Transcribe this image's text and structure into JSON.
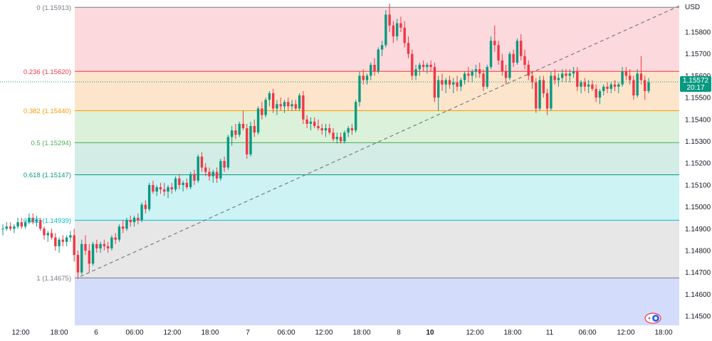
{
  "currency_label": "USD",
  "last_price": {
    "value": "1.15572",
    "countdown": "20:17"
  },
  "colors": {
    "up": "#089981",
    "down": "#f23645",
    "trendline": "#787b86",
    "last_price_bg": "#089981"
  },
  "chart_data": {
    "type": "candlestick",
    "instrument_currency": "USD",
    "ylim": [
      1.1445,
      1.1597
    ],
    "y_ticks": [
      "1.15800",
      "1.15700",
      "1.15600",
      "1.15500",
      "1.15400",
      "1.15300",
      "1.15200",
      "1.15100",
      "1.15000",
      "1.14900",
      "1.14800",
      "1.14700",
      "1.14600",
      "1.14500"
    ],
    "x_ticks": [
      {
        "label": "12:00",
        "bold": false
      },
      {
        "label": "18:00",
        "bold": false
      },
      {
        "label": "6",
        "bold": false
      },
      {
        "label": "06:00",
        "bold": false
      },
      {
        "label": "12:00",
        "bold": false
      },
      {
        "label": "18:00",
        "bold": false
      },
      {
        "label": "7",
        "bold": false
      },
      {
        "label": "06:00",
        "bold": false
      },
      {
        "label": "12:00",
        "bold": false
      },
      {
        "label": "18:00",
        "bold": false
      },
      {
        "label": "8",
        "bold": false
      },
      {
        "label": "10",
        "bold": true
      },
      {
        "label": "12:00",
        "bold": false
      },
      {
        "label": "18:00",
        "bold": false
      },
      {
        "label": "11",
        "bold": false
      },
      {
        "label": "06:00",
        "bold": false
      },
      {
        "label": "12:00",
        "bold": false
      },
      {
        "label": "18:00",
        "bold": false
      }
    ],
    "fib_levels": [
      {
        "label": "0 (1.15913)",
        "price": 1.15913,
        "color": "#787b86",
        "text_color": "#787b86",
        "fill": "#fcd9dc"
      },
      {
        "label": "0.236 (1.15620)",
        "price": 1.1562,
        "color": "#f23645",
        "text_color": "#f23645",
        "fill": "#fde5cc"
      },
      {
        "label": "0.382 (1.15440)",
        "price": 1.1544,
        "color": "#ff9800",
        "text_color": "#ff9800",
        "fill": "#dbf1d9"
      },
      {
        "label": "0.5 (1.15294)",
        "price": 1.15294,
        "color": "#4caf50",
        "text_color": "#4caf50",
        "fill": "#d3ece6"
      },
      {
        "label": "0.618 (1.15147)",
        "price": 1.15147,
        "color": "#089981",
        "text_color": "#089981",
        "fill": "#cdf3f4"
      },
      {
        "label": "0.786 (1.14939)",
        "price": 1.14939,
        "color": "#00bcd4",
        "text_color": "#00bcd4",
        "fill": "#e7e7e7"
      },
      {
        "label": "1 (1.14675)",
        "price": 1.14675,
        "color": "#787b86",
        "text_color": "#787b86",
        "fill": "#d4dcfb"
      }
    ],
    "candles": [
      [
        1.149,
        1.1492,
        1.1487,
        1.149
      ],
      [
        1.149,
        1.1493,
        1.1489,
        1.1491
      ],
      [
        1.1491,
        1.1493,
        1.1489,
        1.149
      ],
      [
        1.149,
        1.1492,
        1.1488,
        1.1491
      ],
      [
        1.1491,
        1.1495,
        1.149,
        1.1493
      ],
      [
        1.1493,
        1.1495,
        1.149,
        1.1491
      ],
      [
        1.1491,
        1.1494,
        1.149,
        1.1493
      ],
      [
        1.1493,
        1.1497,
        1.1492,
        1.1495
      ],
      [
        1.1495,
        1.1497,
        1.1492,
        1.1493
      ],
      [
        1.1493,
        1.1496,
        1.1491,
        1.1494
      ],
      [
        1.1494,
        1.1495,
        1.1489,
        1.149
      ],
      [
        1.149,
        1.1491,
        1.1485,
        1.1487
      ],
      [
        1.1487,
        1.1489,
        1.1484,
        1.1488
      ],
      [
        1.1488,
        1.149,
        1.1485,
        1.1486
      ],
      [
        1.1486,
        1.1488,
        1.148,
        1.1482
      ],
      [
        1.1482,
        1.1486,
        1.1479,
        1.1485
      ],
      [
        1.1485,
        1.1487,
        1.1482,
        1.1484
      ],
      [
        1.1484,
        1.1487,
        1.1482,
        1.1486
      ],
      [
        1.1486,
        1.1489,
        1.1484,
        1.1487
      ],
      [
        1.1487,
        1.149,
        1.1475,
        1.1478
      ],
      [
        1.1478,
        1.148,
        1.1467,
        1.147
      ],
      [
        1.147,
        1.1485,
        1.1469,
        1.1483
      ],
      [
        1.1483,
        1.1487,
        1.1478,
        1.148
      ],
      [
        1.148,
        1.1483,
        1.147,
        1.1474
      ],
      [
        1.1474,
        1.1484,
        1.1473,
        1.1483
      ],
      [
        1.1483,
        1.1485,
        1.1479,
        1.1481
      ],
      [
        1.1481,
        1.1484,
        1.1479,
        1.1483
      ],
      [
        1.1483,
        1.1485,
        1.148,
        1.1482
      ],
      [
        1.1482,
        1.1484,
        1.1479,
        1.1481
      ],
      [
        1.1481,
        1.1487,
        1.148,
        1.1486
      ],
      [
        1.1486,
        1.1488,
        1.1483,
        1.1485
      ],
      [
        1.1485,
        1.1492,
        1.1484,
        1.1491
      ],
      [
        1.1491,
        1.1494,
        1.1488,
        1.149
      ],
      [
        1.149,
        1.1495,
        1.1489,
        1.1494
      ],
      [
        1.1494,
        1.1496,
        1.1491,
        1.1493
      ],
      [
        1.1493,
        1.1496,
        1.1491,
        1.1495
      ],
      [
        1.1495,
        1.1497,
        1.1492,
        1.1494
      ],
      [
        1.1494,
        1.1502,
        1.1493,
        1.1501
      ],
      [
        1.1501,
        1.1503,
        1.1497,
        1.1499
      ],
      [
        1.1499,
        1.1511,
        1.1498,
        1.151
      ],
      [
        1.151,
        1.1512,
        1.1506,
        1.1507
      ],
      [
        1.1507,
        1.151,
        1.1505,
        1.1509
      ],
      [
        1.1509,
        1.1511,
        1.1506,
        1.1508
      ],
      [
        1.1508,
        1.1511,
        1.1505,
        1.1507
      ],
      [
        1.1507,
        1.151,
        1.1504,
        1.1509
      ],
      [
        1.1509,
        1.1511,
        1.1506,
        1.1508
      ],
      [
        1.1508,
        1.1514,
        1.1507,
        1.1513
      ],
      [
        1.1513,
        1.1515,
        1.1508,
        1.151
      ],
      [
        1.151,
        1.1512,
        1.1507,
        1.1511
      ],
      [
        1.1511,
        1.1513,
        1.1508,
        1.1509
      ],
      [
        1.1509,
        1.1516,
        1.1508,
        1.1515
      ],
      [
        1.1515,
        1.1517,
        1.151,
        1.1512
      ],
      [
        1.1512,
        1.1524,
        1.1511,
        1.1523
      ],
      [
        1.1523,
        1.1525,
        1.1516,
        1.1518
      ],
      [
        1.1518,
        1.152,
        1.1514,
        1.1516
      ],
      [
        1.1516,
        1.1518,
        1.1512,
        1.1514
      ],
      [
        1.1514,
        1.1517,
        1.1511,
        1.1516
      ],
      [
        1.1516,
        1.1518,
        1.1511,
        1.1513
      ],
      [
        1.1513,
        1.1522,
        1.1512,
        1.1521
      ],
      [
        1.1521,
        1.1523,
        1.1516,
        1.1518
      ],
      [
        1.1518,
        1.1533,
        1.1517,
        1.1532
      ],
      [
        1.1532,
        1.1537,
        1.1528,
        1.1535
      ],
      [
        1.1535,
        1.1538,
        1.1531,
        1.1533
      ],
      [
        1.1533,
        1.1539,
        1.1532,
        1.1538
      ],
      [
        1.1538,
        1.1544,
        1.1535,
        1.1536
      ],
      [
        1.1536,
        1.1538,
        1.1522,
        1.1524
      ],
      [
        1.1524,
        1.1539,
        1.1523,
        1.1537
      ],
      [
        1.1537,
        1.154,
        1.1532,
        1.1534
      ],
      [
        1.1534,
        1.1546,
        1.1533,
        1.1545
      ],
      [
        1.1545,
        1.1548,
        1.154,
        1.1542
      ],
      [
        1.1542,
        1.155,
        1.1541,
        1.1549
      ],
      [
        1.1549,
        1.1553,
        1.1546,
        1.1552
      ],
      [
        1.1552,
        1.1554,
        1.1543,
        1.1545
      ],
      [
        1.1545,
        1.1549,
        1.1542,
        1.1547
      ],
      [
        1.1547,
        1.155,
        1.1544,
        1.1546
      ],
      [
        1.1546,
        1.1549,
        1.1543,
        1.1548
      ],
      [
        1.1548,
        1.155,
        1.1544,
        1.1546
      ],
      [
        1.1546,
        1.1549,
        1.1544,
        1.1547
      ],
      [
        1.1547,
        1.1549,
        1.1544,
        1.1545
      ],
      [
        1.1545,
        1.1552,
        1.1544,
        1.1551
      ],
      [
        1.1551,
        1.1553,
        1.1538,
        1.154
      ],
      [
        1.154,
        1.1542,
        1.1536,
        1.1538
      ],
      [
        1.1538,
        1.1541,
        1.1535,
        1.1539
      ],
      [
        1.1539,
        1.1541,
        1.1536,
        1.1537
      ],
      [
        1.1537,
        1.154,
        1.1535,
        1.1536
      ],
      [
        1.1536,
        1.1538,
        1.1533,
        1.1535
      ],
      [
        1.1535,
        1.1538,
        1.1532,
        1.1536
      ],
      [
        1.1536,
        1.1538,
        1.1533,
        1.1534
      ],
      [
        1.1534,
        1.1536,
        1.153,
        1.1531
      ],
      [
        1.1531,
        1.1534,
        1.1529,
        1.1532
      ],
      [
        1.1532,
        1.1534,
        1.1529,
        1.153
      ],
      [
        1.153,
        1.1535,
        1.1529,
        1.1534
      ],
      [
        1.1534,
        1.1537,
        1.1532,
        1.1536
      ],
      [
        1.1536,
        1.1538,
        1.1533,
        1.1535
      ],
      [
        1.1535,
        1.1549,
        1.1534,
        1.1548
      ],
      [
        1.1548,
        1.1562,
        1.1546,
        1.156
      ],
      [
        1.156,
        1.1563,
        1.1556,
        1.1558
      ],
      [
        1.1558,
        1.1561,
        1.1556,
        1.156
      ],
      [
        1.156,
        1.1566,
        1.1558,
        1.1565
      ],
      [
        1.1565,
        1.1568,
        1.156,
        1.1562
      ],
      [
        1.1562,
        1.1573,
        1.1561,
        1.1572
      ],
      [
        1.1572,
        1.1576,
        1.1569,
        1.1574
      ],
      [
        1.1574,
        1.159,
        1.1573,
        1.1588
      ],
      [
        1.1588,
        1.1593,
        1.158,
        1.1583
      ],
      [
        1.1583,
        1.1585,
        1.1575,
        1.1578
      ],
      [
        1.1578,
        1.1586,
        1.1576,
        1.1584
      ],
      [
        1.1584,
        1.1587,
        1.158,
        1.1582
      ],
      [
        1.1582,
        1.1585,
        1.1573,
        1.1575
      ],
      [
        1.1575,
        1.1578,
        1.1568,
        1.157
      ],
      [
        1.157,
        1.1572,
        1.1558,
        1.156
      ],
      [
        1.156,
        1.1565,
        1.1558,
        1.1563
      ],
      [
        1.1563,
        1.1566,
        1.156,
        1.1565
      ],
      [
        1.1565,
        1.1567,
        1.1562,
        1.1564
      ],
      [
        1.1564,
        1.1566,
        1.1561,
        1.1565
      ],
      [
        1.1565,
        1.1567,
        1.1562,
        1.1564
      ],
      [
        1.1564,
        1.1566,
        1.1548,
        1.155
      ],
      [
        1.155,
        1.156,
        1.1544,
        1.1558
      ],
      [
        1.1558,
        1.1561,
        1.1553,
        1.1556
      ],
      [
        1.1556,
        1.1559,
        1.1552,
        1.1558
      ],
      [
        1.1558,
        1.156,
        1.1554,
        1.1556
      ],
      [
        1.1556,
        1.1559,
        1.1552,
        1.1557
      ],
      [
        1.1557,
        1.156,
        1.1553,
        1.1555
      ],
      [
        1.1555,
        1.1559,
        1.1553,
        1.1558
      ],
      [
        1.1558,
        1.1562,
        1.1556,
        1.1561
      ],
      [
        1.1561,
        1.1564,
        1.1557,
        1.156
      ],
      [
        1.156,
        1.1563,
        1.1557,
        1.1562
      ],
      [
        1.1562,
        1.1565,
        1.1559,
        1.1563
      ],
      [
        1.1563,
        1.1566,
        1.1559,
        1.1561
      ],
      [
        1.1561,
        1.1563,
        1.1553,
        1.1555
      ],
      [
        1.1555,
        1.1565,
        1.1554,
        1.1564
      ],
      [
        1.1564,
        1.1578,
        1.1563,
        1.1576
      ],
      [
        1.1576,
        1.1583,
        1.1571,
        1.1574
      ],
      [
        1.1574,
        1.1576,
        1.1565,
        1.1567
      ],
      [
        1.1567,
        1.157,
        1.156,
        1.1562
      ],
      [
        1.1562,
        1.1565,
        1.1556,
        1.1559
      ],
      [
        1.1559,
        1.1571,
        1.1558,
        1.157
      ],
      [
        1.157,
        1.1572,
        1.1564,
        1.1566
      ],
      [
        1.1566,
        1.1577,
        1.1565,
        1.1576
      ],
      [
        1.1576,
        1.1579,
        1.1567,
        1.1569
      ],
      [
        1.1569,
        1.1572,
        1.1563,
        1.1565
      ],
      [
        1.1565,
        1.1567,
        1.1558,
        1.156
      ],
      [
        1.156,
        1.1562,
        1.1554,
        1.1557
      ],
      [
        1.1557,
        1.1559,
        1.1543,
        1.1545
      ],
      [
        1.1545,
        1.156,
        1.1544,
        1.1558
      ],
      [
        1.1558,
        1.156,
        1.155,
        1.1552
      ],
      [
        1.1552,
        1.1554,
        1.1542,
        1.1545
      ],
      [
        1.1545,
        1.1562,
        1.1544,
        1.156
      ],
      [
        1.156,
        1.1563,
        1.1556,
        1.1558
      ],
      [
        1.1558,
        1.1561,
        1.1555,
        1.1559
      ],
      [
        1.1559,
        1.1563,
        1.1557,
        1.1561
      ],
      [
        1.1561,
        1.1563,
        1.1557,
        1.156
      ],
      [
        1.156,
        1.1563,
        1.1557,
        1.1561
      ],
      [
        1.1561,
        1.1564,
        1.1559,
        1.1562
      ],
      [
        1.1562,
        1.1564,
        1.1553,
        1.1555
      ],
      [
        1.1555,
        1.1558,
        1.1552,
        1.1557
      ],
      [
        1.1557,
        1.1559,
        1.1553,
        1.1555
      ],
      [
        1.1555,
        1.1558,
        1.1552,
        1.1556
      ],
      [
        1.1556,
        1.1558,
        1.1553,
        1.1554
      ],
      [
        1.1554,
        1.1556,
        1.1548,
        1.155
      ],
      [
        1.155,
        1.1554,
        1.1547,
        1.1553
      ],
      [
        1.1553,
        1.1556,
        1.1551,
        1.1555
      ],
      [
        1.1555,
        1.1557,
        1.1552,
        1.1554
      ],
      [
        1.1554,
        1.1557,
        1.1552,
        1.1556
      ],
      [
        1.1556,
        1.1558,
        1.1553,
        1.1555
      ],
      [
        1.1555,
        1.1557,
        1.1552,
        1.1556
      ],
      [
        1.1556,
        1.1564,
        1.1555,
        1.1562
      ],
      [
        1.1562,
        1.1564,
        1.1558,
        1.156
      ],
      [
        1.156,
        1.1563,
        1.1556,
        1.1558
      ],
      [
        1.1558,
        1.156,
        1.1549,
        1.1551
      ],
      [
        1.1551,
        1.1563,
        1.155,
        1.1561
      ],
      [
        1.1561,
        1.1569,
        1.1556,
        1.1558
      ],
      [
        1.1558,
        1.156,
        1.1549,
        1.1553
      ],
      [
        1.1553,
        1.1559,
        1.1552,
        1.1557
      ]
    ]
  }
}
